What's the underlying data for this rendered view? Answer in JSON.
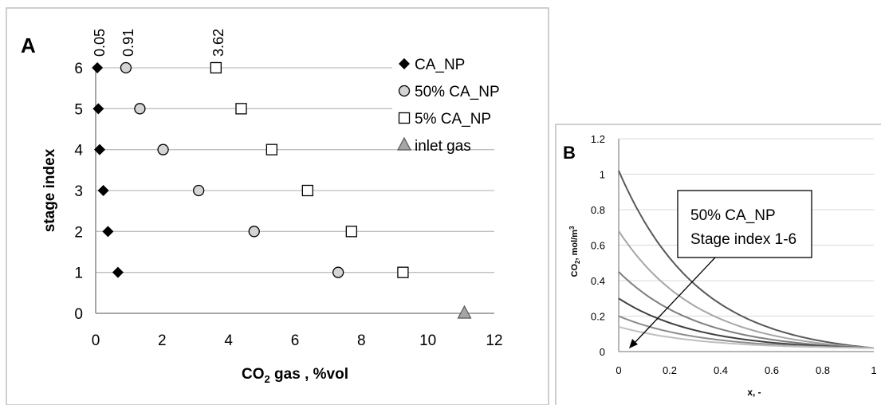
{
  "panels": [
    {
      "id": "A",
      "label": "A"
    },
    {
      "id": "B",
      "label": "B"
    }
  ],
  "chart_data": [
    {
      "panel": "A",
      "type": "scatter",
      "xlabel_main": "CO",
      "xlabel_sub": "2",
      "xlabel_rest": " gas , %vol",
      "ylabel": "stage index",
      "xlim": [
        0,
        12
      ],
      "ylim": [
        0,
        6
      ],
      "xticks": [
        "0",
        "2",
        "4",
        "6",
        "8",
        "10",
        "12"
      ],
      "yticks": [
        "0",
        "1",
        "2",
        "3",
        "4",
        "5",
        "6"
      ],
      "grid": "horizontal",
      "legend_position": "right",
      "series": [
        {
          "name": "CA_NP",
          "marker": "diamond",
          "color": "#000000",
          "points": [
            [
              0.67,
              1
            ],
            [
              0.37,
              2
            ],
            [
              0.23,
              3
            ],
            [
              0.12,
              4
            ],
            [
              0.08,
              5
            ],
            [
              0.05,
              6
            ]
          ]
        },
        {
          "name": "50% CA_NP",
          "marker": "circle",
          "color": "#d4d4d4",
          "points": [
            [
              7.3,
              1
            ],
            [
              4.77,
              2
            ],
            [
              3.1,
              3
            ],
            [
              2.03,
              4
            ],
            [
              1.33,
              5
            ],
            [
              0.91,
              6
            ]
          ]
        },
        {
          "name": "5% CA_NP",
          "marker": "square",
          "color": "#ffffff",
          "points": [
            [
              9.25,
              1
            ],
            [
              7.7,
              2
            ],
            [
              6.38,
              3
            ],
            [
              5.3,
              4
            ],
            [
              4.38,
              5
            ],
            [
              3.62,
              6
            ]
          ]
        },
        {
          "name": "inlet gas",
          "marker": "triangle",
          "color": "#a6a6a6",
          "points": [
            [
              11.1,
              0
            ]
          ]
        }
      ],
      "annotations": [
        {
          "text": "0.05",
          "x": 0.05,
          "y": 6
        },
        {
          "text": "0.91",
          "x": 0.91,
          "y": 6
        },
        {
          "text": "3.62",
          "x": 3.62,
          "y": 6
        }
      ]
    },
    {
      "panel": "B",
      "type": "line",
      "xlabel": "x, -",
      "ylabel_main": "CO",
      "ylabel_sub": "2",
      "ylabel_rest": ", mol/m",
      "ylabel_sup": "3",
      "xlim": [
        0,
        1
      ],
      "ylim": [
        0,
        1.2
      ],
      "xticks": [
        "0",
        "0.2",
        "0.4",
        "0.6",
        "0.8",
        "1"
      ],
      "yticks": [
        "0",
        "0.2",
        "0.4",
        "0.6",
        "0.8",
        "1",
        "1.2"
      ],
      "grid": "horizontal",
      "annotation_box": [
        "50% CA_NP",
        "Stage index 1-6"
      ],
      "series": [
        {
          "stage": 1,
          "start": 1.02,
          "end": 0.02,
          "color": "#595959"
        },
        {
          "stage": 2,
          "start": 0.68,
          "end": 0.02,
          "color": "#a6a6a6"
        },
        {
          "stage": 3,
          "start": 0.45,
          "end": 0.02,
          "color": "#7f7f7f"
        },
        {
          "stage": 4,
          "start": 0.3,
          "end": 0.02,
          "color": "#404040"
        },
        {
          "stage": 5,
          "start": 0.2,
          "end": 0.02,
          "color": "#8c8c8c"
        },
        {
          "stage": 6,
          "start": 0.14,
          "end": 0.02,
          "color": "#bfbfbf"
        }
      ]
    }
  ]
}
